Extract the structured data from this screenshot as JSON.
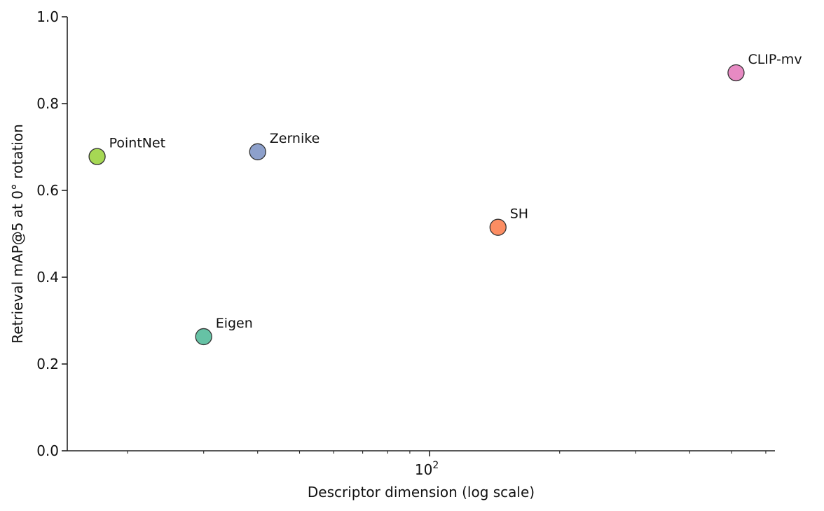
{
  "chart_data": {
    "type": "scatter",
    "title": "",
    "xlabel": "Descriptor dimension (log scale)",
    "ylabel": "Retrieval mAP@5 at 0° rotation",
    "xscale": "log",
    "xlim": [
      14.5,
      630
    ],
    "ylim": [
      0,
      1.0
    ],
    "grid": false,
    "legend": "none",
    "x_ticks": [
      {
        "value": 100,
        "base": "10",
        "exp": "2"
      }
    ],
    "y_ticks": [
      "0.0",
      "0.2",
      "0.4",
      "0.6",
      "0.8",
      "1.0"
    ],
    "points": [
      {
        "label": "PointNet",
        "x": 17,
        "y": 0.678,
        "color": "#a6d854"
      },
      {
        "label": "Eigen",
        "x": 30,
        "y": 0.263,
        "color": "#66c2a5"
      },
      {
        "label": "Zernike",
        "x": 40,
        "y": 0.689,
        "color": "#8da0cb"
      },
      {
        "label": "SH",
        "x": 144,
        "y": 0.515,
        "color": "#fc8d62"
      },
      {
        "label": "CLIP-mv",
        "x": 512,
        "y": 0.871,
        "color": "#e78ac3"
      }
    ]
  }
}
